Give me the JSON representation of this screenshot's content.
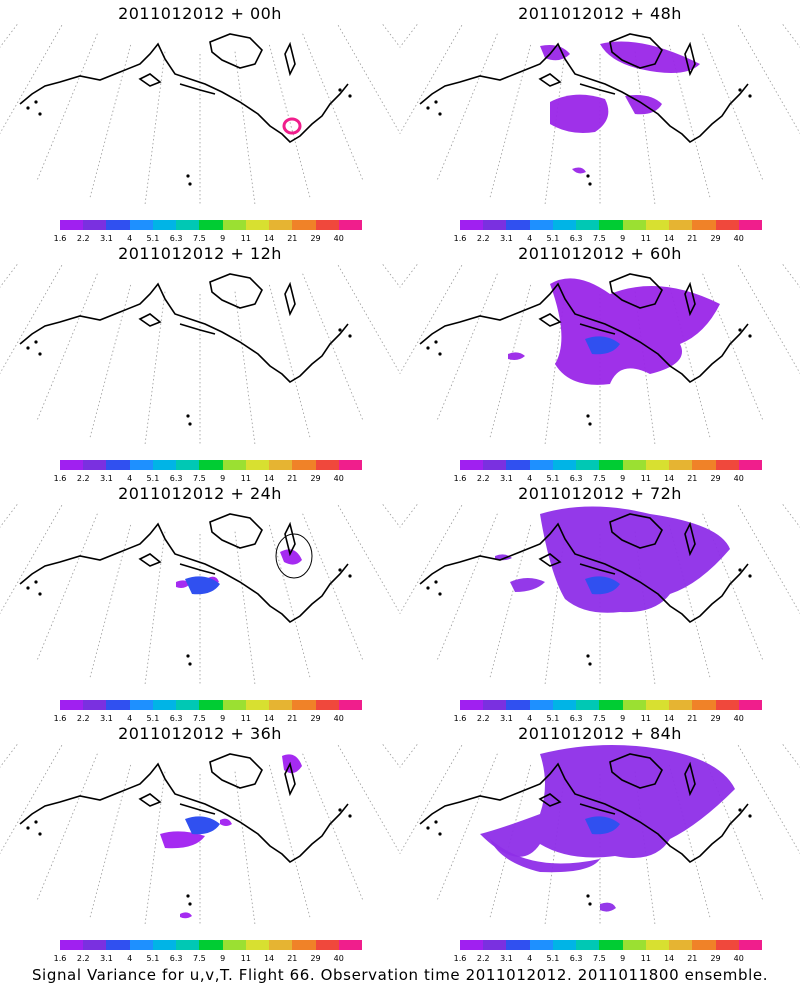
{
  "panels": [
    {
      "title": "2011012012 + 00h"
    },
    {
      "title": "2011012012 + 48h"
    },
    {
      "title": "2011012012 + 12h"
    },
    {
      "title": "2011012012 + 60h"
    },
    {
      "title": "2011012012 + 24h"
    },
    {
      "title": "2011012012 + 72h"
    },
    {
      "title": "2011012012 + 36h"
    },
    {
      "title": "2011012012 + 84h"
    }
  ],
  "colorbar": {
    "labels": [
      "1.6",
      "2.2",
      "3.1",
      "4",
      "5.1",
      "6.3",
      "7.5",
      "9",
      "11",
      "14",
      "21",
      "29",
      "40"
    ],
    "colors": [
      "#a020f0",
      "#7a30e0",
      "#3050f0",
      "#1e90ff",
      "#00b4e6",
      "#00c8b4",
      "#00cc33",
      "#9be032",
      "#d8e030",
      "#e6b432",
      "#f08228",
      "#f0483c",
      "#f01e8c"
    ]
  },
  "footer": "Signal Variance for u,v,T. Flight 66. Observation time 2011012012. 2011011800 ensemble."
}
